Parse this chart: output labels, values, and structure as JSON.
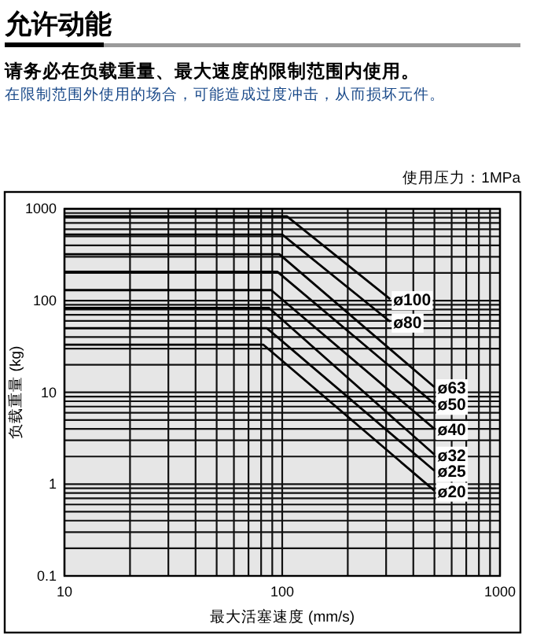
{
  "chart_data": {
    "type": "line",
    "title": "允许动能",
    "subtitle": "请务必在负载重量、最大速度的限制范围内使用。",
    "annotations": [
      "在限制范围外使用的场合，可能造成过度冲击，从而损坏元件。",
      "使用压力：1MPa"
    ],
    "xlabel": "最大活塞速度 (mm/s)",
    "ylabel": "负载重量 (kg)",
    "log": "xy",
    "grid": true,
    "xlim": [
      10,
      1000
    ],
    "ylim": [
      0.1,
      1000
    ],
    "xticks": [
      10,
      {
        "value": 20,
        "label": null
      },
      {
        "value": 30,
        "label": null
      },
      {
        "value": 40,
        "label": null
      },
      {
        "value": 50,
        "label": null
      },
      {
        "value": 60,
        "label": null
      },
      {
        "value": 70,
        "label": null
      },
      {
        "value": 80,
        "label": null
      },
      {
        "value": 90,
        "label": null
      },
      100,
      {
        "value": 200,
        "label": null
      },
      {
        "value": 300,
        "label": null
      },
      {
        "value": 400,
        "label": null
      },
      {
        "value": 500,
        "label": null
      },
      {
        "value": 600,
        "label": null
      },
      {
        "value": 700,
        "label": null
      },
      {
        "value": 800,
        "label": null
      },
      {
        "value": 900,
        "label": null
      },
      1000
    ],
    "yticks": [
      0.1,
      {
        "value": 0.2,
        "label": null
      },
      {
        "value": 0.3,
        "label": null
      },
      {
        "value": 0.4,
        "label": null
      },
      {
        "value": 0.5,
        "label": null
      },
      {
        "value": 0.6,
        "label": null
      },
      {
        "value": 0.7,
        "label": null
      },
      {
        "value": 0.8,
        "label": null
      },
      {
        "value": 0.9,
        "label": null
      },
      1,
      {
        "value": 2,
        "label": null
      },
      {
        "value": 3,
        "label": null
      },
      {
        "value": 4,
        "label": null
      },
      {
        "value": 5,
        "label": null
      },
      {
        "value": 6,
        "label": null
      },
      {
        "value": 7,
        "label": null
      },
      {
        "value": 8,
        "label": null
      },
      {
        "value": 9,
        "label": null
      },
      10,
      {
        "value": 20,
        "label": null
      },
      {
        "value": 30,
        "label": null
      },
      {
        "value": 40,
        "label": null
      },
      {
        "value": 50,
        "label": null
      },
      {
        "value": 60,
        "label": null
      },
      {
        "value": 70,
        "label": null
      },
      {
        "value": 80,
        "label": null
      },
      {
        "value": 90,
        "label": null
      },
      100,
      {
        "value": 200,
        "label": null
      },
      {
        "value": 300,
        "label": null
      },
      {
        "value": 400,
        "label": null
      },
      {
        "value": 500,
        "label": null
      },
      {
        "value": 600,
        "label": null
      },
      {
        "value": 700,
        "label": null
      },
      {
        "value": 800,
        "label": null
      },
      {
        "value": 900,
        "label": null
      },
      1000
    ],
    "series": [
      {
        "name": "ø100",
        "color": "#000000",
        "x": [
          10,
          105,
          313
        ],
        "values": [
          830,
          830,
          104
        ]
      },
      {
        "name": "ø80",
        "color": "#000000",
        "x": [
          10,
          100,
          313
        ],
        "values": [
          525,
          525,
          59
        ]
      },
      {
        "name": "ø63",
        "color": "#000000",
        "x": [
          10,
          97,
          500
        ],
        "values": [
          320,
          320,
          11.4
        ]
      },
      {
        "name": "ø50",
        "color": "#000000",
        "x": [
          10,
          95,
          500
        ],
        "values": [
          206,
          206,
          7.5
        ]
      },
      {
        "name": "ø40",
        "color": "#000000",
        "x": [
          10,
          89,
          500
        ],
        "values": [
          130,
          130,
          4
        ]
      },
      {
        "name": "ø32",
        "color": "#000000",
        "x": [
          10,
          87,
          500
        ],
        "values": [
          83,
          83,
          2.1
        ]
      },
      {
        "name": "ø25",
        "color": "#000000",
        "x": [
          10,
          85,
          500
        ],
        "values": [
          50,
          50,
          1.4
        ]
      },
      {
        "name": "ø20",
        "color": "#000000",
        "x": [
          10,
          82,
          500
        ],
        "values": [
          33,
          33,
          0.85
        ]
      }
    ]
  }
}
